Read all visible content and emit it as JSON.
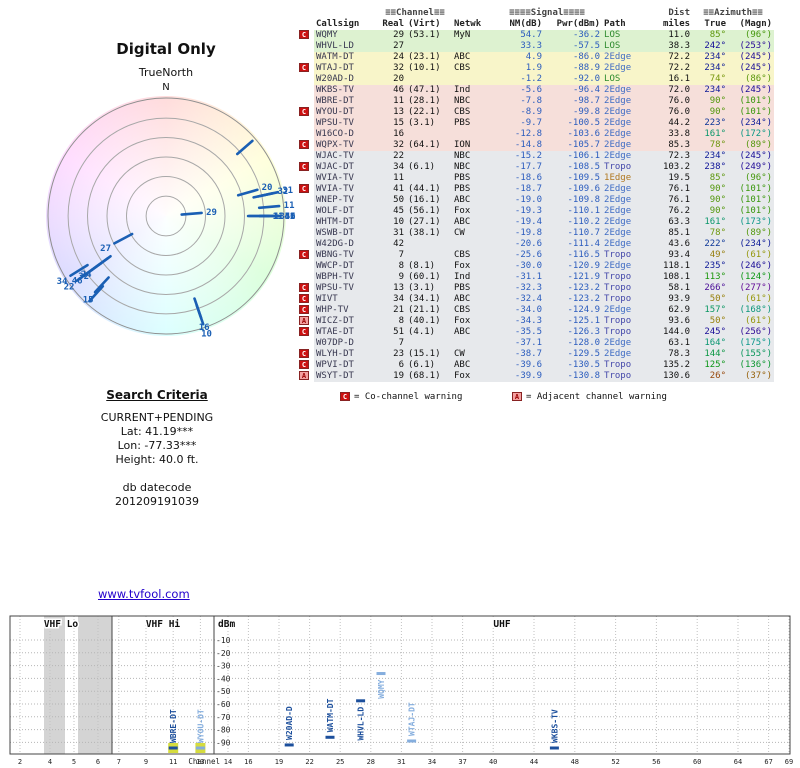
{
  "radar": {
    "title": "Digital Only",
    "orientation_label": "TrueNorth",
    "north_label": "N"
  },
  "search_criteria": {
    "title": "Search Criteria",
    "lines": [
      "CURRENT+PENDING",
      "Lat: 41.19***",
      "Lon: -77.33***",
      "Height: 40.0 ft."
    ],
    "footer_lines": [
      "db datecode",
      "201209191039"
    ]
  },
  "link": "www.tvfool.com",
  "table": {
    "header": {
      "channel_group": "≡≡Channel≡≡",
      "signal_group": "≡≡≡≡Signal≡≡≡≡",
      "dist_group": "Dist",
      "azimuth_group": "≡≡Azimuth≡≡",
      "columns": [
        "Callsign",
        "Real",
        "(Virt)",
        "Netwk",
        "NM(dB)",
        "Pwr(dBm)",
        "Path",
        "miles",
        "True",
        "(Magn)"
      ]
    },
    "band_colors": {
      "green": "#ddf2d0",
      "yellow": "#f8f5c9",
      "pink": "#f6dfda",
      "gray": "#e7e9ec"
    },
    "path_colors": {
      "LOS": "#2e8b2e",
      "1Edge": "#b07820",
      "2Edge": "#3f6cc4",
      "Tropo": "#4448aa"
    },
    "warning_colors": {
      "C": "#cc1111",
      "A": "#f4a0a0"
    },
    "warning_text_colors": {
      "C": "#ffffff",
      "A": "#990000"
    },
    "rows": [
      {
        "warn": "C",
        "callsign": "WQMY",
        "real": 29,
        "virt": "(53.1)",
        "netwk": "MyN",
        "nm": 54.7,
        "pwr": -36.2,
        "path": "LOS",
        "miles": 11.0,
        "true_az": 85,
        "magn_az": 96,
        "band": "green"
      },
      {
        "warn": "",
        "callsign": "WHVL-LD",
        "real": 27,
        "virt": "",
        "netwk": "",
        "nm": 33.3,
        "pwr": -57.5,
        "path": "LOS",
        "miles": 38.3,
        "true_az": 242,
        "magn_az": 253,
        "band": "green"
      },
      {
        "warn": "",
        "callsign": "WATM-DT",
        "real": 24,
        "virt": "(23.1)",
        "netwk": "ABC",
        "nm": 4.9,
        "pwr": -86.0,
        "path": "2Edge",
        "miles": 72.2,
        "true_az": 234,
        "magn_az": 245,
        "band": "yellow"
      },
      {
        "warn": "C",
        "callsign": "WTAJ-DT",
        "real": 32,
        "virt": "(10.1)",
        "netwk": "CBS",
        "nm": 1.9,
        "pwr": -88.9,
        "path": "2Edge",
        "miles": 72.2,
        "true_az": 234,
        "magn_az": 245,
        "band": "yellow"
      },
      {
        "warn": "",
        "callsign": "W20AD-D",
        "real": 20,
        "virt": "",
        "netwk": "",
        "nm": -1.2,
        "pwr": -92.0,
        "path": "LOS",
        "miles": 16.1,
        "true_az": 74,
        "magn_az": 86,
        "band": "yellow"
      },
      {
        "warn": "",
        "callsign": "WKBS-TV",
        "real": 46,
        "virt": "(47.1)",
        "netwk": "Ind",
        "nm": -5.6,
        "pwr": -96.4,
        "path": "2Edge",
        "miles": 72.0,
        "true_az": 234,
        "magn_az": 245,
        "band": "pink"
      },
      {
        "warn": "",
        "callsign": "WBRE-DT",
        "real": 11,
        "virt": "(28.1)",
        "netwk": "NBC",
        "nm": -7.8,
        "pwr": -98.7,
        "path": "2Edge",
        "miles": 76.0,
        "true_az": 90,
        "magn_az": 101,
        "band": "pink"
      },
      {
        "warn": "C",
        "callsign": "WYOU-DT",
        "real": 13,
        "virt": "(22.1)",
        "netwk": "CBS",
        "nm": -8.9,
        "pwr": -99.8,
        "path": "2Edge",
        "miles": 76.0,
        "true_az": 90,
        "magn_az": 101,
        "band": "pink"
      },
      {
        "warn": "",
        "callsign": "WPSU-TV",
        "real": 15,
        "virt": "(3.1)",
        "netwk": "PBS",
        "nm": -9.7,
        "pwr": -100.5,
        "path": "2Edge",
        "miles": 44.2,
        "true_az": 223,
        "magn_az": 234,
        "band": "pink"
      },
      {
        "warn": "",
        "callsign": "W16CO-D",
        "real": 16,
        "virt": "",
        "netwk": "",
        "nm": -12.8,
        "pwr": -103.6,
        "path": "2Edge",
        "miles": 33.8,
        "true_az": 161,
        "magn_az": 172,
        "band": "pink"
      },
      {
        "warn": "C",
        "callsign": "WQPX-TV",
        "real": 32,
        "virt": "(64.1)",
        "netwk": "ION",
        "nm": -14.8,
        "pwr": -105.7,
        "path": "2Edge",
        "miles": 85.3,
        "true_az": 78,
        "magn_az": 89,
        "band": "pink"
      },
      {
        "warn": "",
        "callsign": "WJAC-TV",
        "real": 22,
        "virt": "",
        "netwk": "NBC",
        "nm": -15.2,
        "pwr": -106.1,
        "path": "2Edge",
        "miles": 72.3,
        "true_az": 234,
        "magn_az": 245,
        "band": "gray"
      },
      {
        "warn": "C",
        "callsign": "WJAC-DT",
        "real": 34,
        "virt": "(6.1)",
        "netwk": "NBC",
        "nm": -17.7,
        "pwr": -108.5,
        "path": "Tropo",
        "miles": 103.2,
        "true_az": 238,
        "magn_az": 249,
        "band": "gray"
      },
      {
        "warn": "",
        "callsign": "WVIA-TV",
        "real": 11,
        "virt": "",
        "netwk": "PBS",
        "nm": -18.6,
        "pwr": -109.5,
        "path": "1Edge",
        "miles": 19.5,
        "true_az": 85,
        "magn_az": 96,
        "band": "gray"
      },
      {
        "warn": "C",
        "callsign": "WVIA-TV",
        "real": 41,
        "virt": "(44.1)",
        "netwk": "PBS",
        "nm": -18.7,
        "pwr": -109.6,
        "path": "2Edge",
        "miles": 76.1,
        "true_az": 90,
        "magn_az": 101,
        "band": "gray"
      },
      {
        "warn": "",
        "callsign": "WNEP-TV",
        "real": 50,
        "virt": "(16.1)",
        "netwk": "ABC",
        "nm": -19.0,
        "pwr": -109.8,
        "path": "2Edge",
        "miles": 76.1,
        "true_az": 90,
        "magn_az": 101,
        "band": "gray"
      },
      {
        "warn": "",
        "callsign": "WOLF-DT",
        "real": 45,
        "virt": "(56.1)",
        "netwk": "Fox",
        "nm": -19.3,
        "pwr": -110.1,
        "path": "2Edge",
        "miles": 76.2,
        "true_az": 90,
        "magn_az": 101,
        "band": "gray"
      },
      {
        "warn": "",
        "callsign": "WHTM-DT",
        "real": 10,
        "virt": "(27.1)",
        "netwk": "ABC",
        "nm": -19.4,
        "pwr": -110.2,
        "path": "2Edge",
        "miles": 63.3,
        "true_az": 161,
        "magn_az": 173,
        "band": "gray"
      },
      {
        "warn": "",
        "callsign": "WSWB-DT",
        "real": 31,
        "virt": "(38.1)",
        "netwk": "CW",
        "nm": -19.8,
        "pwr": -110.7,
        "path": "2Edge",
        "miles": 85.1,
        "true_az": 78,
        "magn_az": 89,
        "band": "gray"
      },
      {
        "warn": "",
        "callsign": "W42DG-D",
        "real": 42,
        "virt": "",
        "netwk": "",
        "nm": -20.6,
        "pwr": -111.4,
        "path": "2Edge",
        "miles": 43.6,
        "true_az": 222,
        "magn_az": 234,
        "band": "gray"
      },
      {
        "warn": "C",
        "callsign": "WBNG-TV",
        "real": 7,
        "virt": "",
        "netwk": "CBS",
        "nm": -25.6,
        "pwr": -116.5,
        "path": "Tropo",
        "miles": 93.4,
        "true_az": 49,
        "magn_az": 61,
        "band": "gray"
      },
      {
        "warn": "",
        "callsign": "WWCP-DT",
        "real": 8,
        "virt": "(8.1)",
        "netwk": "Fox",
        "nm": -30.0,
        "pwr": -120.9,
        "path": "2Edge",
        "miles": 118.1,
        "true_az": 235,
        "magn_az": 246,
        "band": "gray"
      },
      {
        "warn": "",
        "callsign": "WBPH-TV",
        "real": 9,
        "virt": "(60.1)",
        "netwk": "Ind",
        "nm": -31.1,
        "pwr": -121.9,
        "path": "Tropo",
        "miles": 108.1,
        "true_az": 113,
        "magn_az": 124,
        "band": "gray"
      },
      {
        "warn": "C",
        "callsign": "WPSU-TV",
        "real": 13,
        "virt": "(3.1)",
        "netwk": "PBS",
        "nm": -32.3,
        "pwr": -123.2,
        "path": "Tropo",
        "miles": 58.1,
        "true_az": 266,
        "magn_az": 277,
        "band": "gray"
      },
      {
        "warn": "C",
        "callsign": "WIVT",
        "real": 34,
        "virt": "(34.1)",
        "netwk": "ABC",
        "nm": -32.4,
        "pwr": -123.2,
        "path": "Tropo",
        "miles": 93.9,
        "true_az": 50,
        "magn_az": 61,
        "band": "gray"
      },
      {
        "warn": "C",
        "callsign": "WHP-TV",
        "real": 21,
        "virt": "(21.1)",
        "netwk": "CBS",
        "nm": -34.0,
        "pwr": -124.9,
        "path": "2Edge",
        "miles": 62.9,
        "true_az": 157,
        "magn_az": 168,
        "band": "gray"
      },
      {
        "warn": "A",
        "callsign": "WICZ-DT",
        "real": 8,
        "virt": "(40.1)",
        "netwk": "Fox",
        "nm": -34.3,
        "pwr": -125.1,
        "path": "Tropo",
        "miles": 93.6,
        "true_az": 50,
        "magn_az": 61,
        "band": "gray"
      },
      {
        "warn": "C",
        "callsign": "WTAE-DT",
        "real": 51,
        "virt": "(4.1)",
        "netwk": "ABC",
        "nm": -35.5,
        "pwr": -126.3,
        "path": "Tropo",
        "miles": 144.0,
        "true_az": 245,
        "magn_az": 256,
        "band": "gray"
      },
      {
        "warn": "",
        "callsign": "W07DP-D",
        "real": 7,
        "virt": "",
        "netwk": "",
        "nm": -37.1,
        "pwr": -128.0,
        "path": "2Edge",
        "miles": 63.1,
        "true_az": 164,
        "magn_az": 175,
        "band": "gray"
      },
      {
        "warn": "C",
        "callsign": "WLYH-DT",
        "real": 23,
        "virt": "(15.1)",
        "netwk": "CW",
        "nm": -38.7,
        "pwr": -129.5,
        "path": "2Edge",
        "miles": 78.3,
        "true_az": 144,
        "magn_az": 155,
        "band": "gray"
      },
      {
        "warn": "C",
        "callsign": "WPVI-DT",
        "real": 6,
        "virt": "(6.1)",
        "netwk": "ABC",
        "nm": -39.6,
        "pwr": -130.5,
        "path": "Tropo",
        "miles": 135.2,
        "true_az": 125,
        "magn_az": 136,
        "band": "gray"
      },
      {
        "warn": "A",
        "callsign": "WSYT-DT",
        "real": 19,
        "virt": "(68.1)",
        "netwk": "Fox",
        "nm": -39.9,
        "pwr": -130.8,
        "path": "Tropo",
        "miles": 130.6,
        "true_az": 26,
        "magn_az": 37,
        "band": "gray"
      }
    ],
    "legend": [
      {
        "symbol": "C",
        "text": "= Co-channel warning"
      },
      {
        "symbol": "A",
        "text": "= Adjacent channel warning"
      }
    ]
  },
  "chart_data": [
    {
      "type": "radar-azimuth",
      "title": "Digital Only",
      "orientation": "TrueNorth",
      "north_marker": "N",
      "rings": 6,
      "line_color": "#1a5fb4",
      "station_fields": [
        "real_channel",
        "azimuth_true_deg",
        "nm_db"
      ],
      "stations": [
        [
          29,
          85,
          54.7
        ],
        [
          27,
          242,
          33.3
        ],
        [
          24,
          234,
          4.9
        ],
        [
          32,
          234,
          1.9
        ],
        [
          20,
          74,
          -1.2
        ],
        [
          46,
          234,
          -5.6
        ],
        [
          11,
          90,
          -7.8
        ],
        [
          13,
          90,
          -8.9
        ],
        [
          15,
          223,
          -9.7
        ],
        [
          16,
          161,
          -12.8
        ],
        [
          32,
          78,
          -14.8
        ],
        [
          22,
          234,
          -15.2
        ],
        [
          34,
          238,
          -17.7
        ],
        [
          11,
          85,
          -18.6
        ],
        [
          41,
          90,
          -18.7
        ],
        [
          50,
          90,
          -19.0
        ],
        [
          45,
          90,
          -19.3
        ],
        [
          10,
          161,
          -19.4
        ],
        [
          31,
          78,
          -19.8
        ],
        [
          42,
          222,
          -20.6
        ],
        [
          7,
          49,
          -25.6
        ],
        [
          8,
          235,
          -30.0
        ],
        [
          9,
          113,
          -31.1
        ],
        [
          13,
          266,
          -32.3
        ],
        [
          34,
          50,
          -32.4
        ],
        [
          21,
          157,
          -34.0
        ],
        [
          8,
          50,
          -34.3
        ],
        [
          51,
          245,
          -35.5
        ],
        [
          7,
          164,
          -37.1
        ],
        [
          23,
          144,
          -38.7
        ],
        [
          6,
          125,
          -39.6
        ],
        [
          19,
          26,
          -39.9
        ]
      ],
      "label_threshold_nm": -20,
      "draw_threshold_nm": -26
    },
    {
      "type": "band-signal",
      "ylabel": "dBm",
      "yticks": [
        -10,
        -20,
        -30,
        -40,
        -50,
        -60,
        -70,
        -80,
        -90
      ],
      "xlabel": "Channel",
      "bands": [
        {
          "label": "VHF Lo",
          "ticks": [
            2,
            4,
            5,
            6
          ]
        },
        {
          "label": "VHF Hi",
          "ticks": [
            7,
            9,
            11,
            13
          ]
        },
        {
          "label": "UHF",
          "ticks": [
            14,
            16,
            19,
            22,
            25,
            28,
            31,
            34,
            37,
            40,
            44,
            48,
            52,
            56,
            60,
            64,
            67,
            69
          ]
        }
      ],
      "stations": [
        {
          "callsign": "WBRE-DT",
          "channel": 11,
          "pwr_dbm": -98.7,
          "warned": false,
          "floor_marker": true
        },
        {
          "callsign": "WYOU-DT",
          "channel": 13,
          "pwr_dbm": -99.8,
          "warned": true,
          "floor_marker": true
        },
        {
          "callsign": "W20AD-D",
          "channel": 20,
          "pwr_dbm": -92.0,
          "warned": false,
          "floor_marker": false
        },
        {
          "callsign": "WATM-DT",
          "channel": 24,
          "pwr_dbm": -86.0,
          "warned": false,
          "floor_marker": false
        },
        {
          "callsign": "WHVL-LD",
          "channel": 27,
          "pwr_dbm": -57.5,
          "warned": false,
          "floor_marker": false
        },
        {
          "callsign": "WQMY",
          "channel": 29,
          "pwr_dbm": -36.2,
          "warned": true,
          "floor_marker": false
        },
        {
          "callsign": "WTAJ-DT",
          "channel": 32,
          "pwr_dbm": -88.9,
          "warned": true,
          "floor_marker": false
        },
        {
          "callsign": "WKBS-TV",
          "channel": 46,
          "pwr_dbm": -96.4,
          "warned": false,
          "floor_marker": false
        }
      ],
      "colors": {
        "normal": "#1c4f9c",
        "warned": "#85aede",
        "floor_marker": "#d6dc3e"
      }
    }
  ]
}
